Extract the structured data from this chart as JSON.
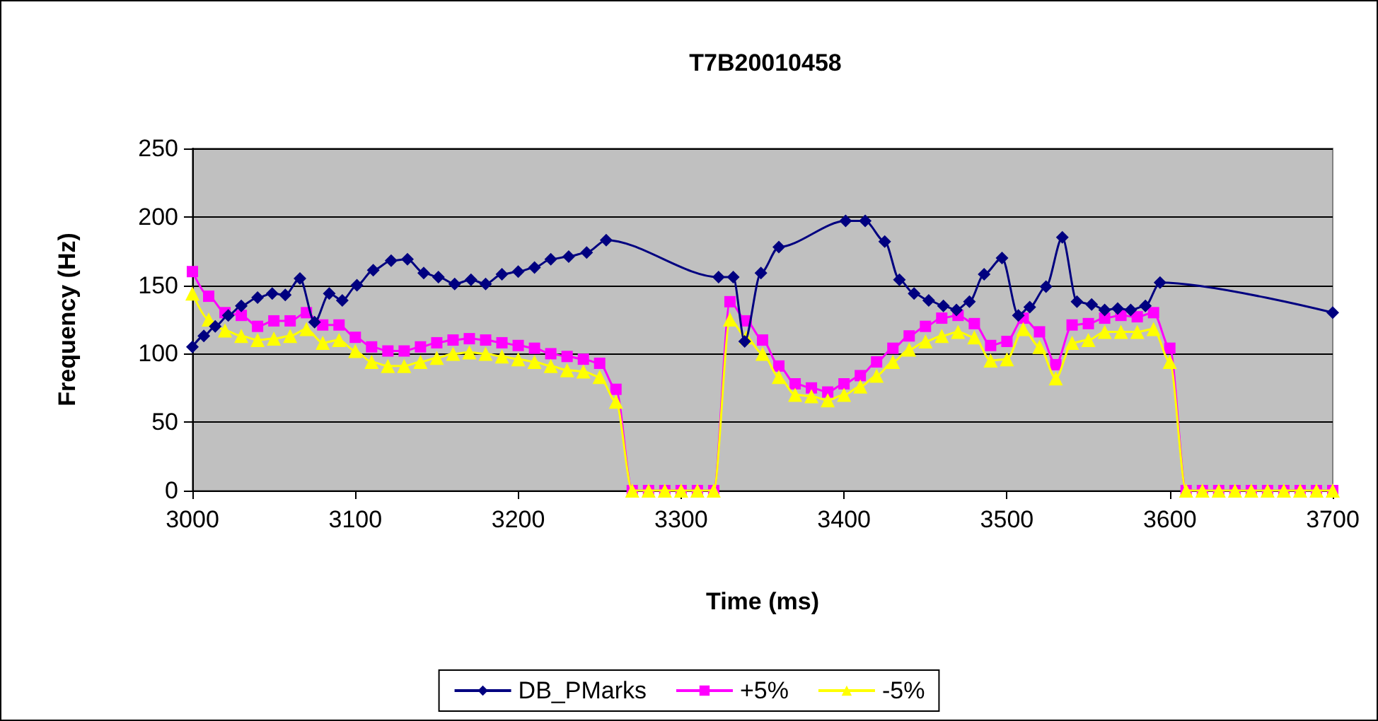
{
  "chart_data": {
    "type": "line",
    "title": "T7B20010458",
    "xlabel": "Time (ms)",
    "ylabel": "Frequency (Hz)",
    "xlim": [
      3000,
      3700
    ],
    "xticks": [
      3000,
      3100,
      3200,
      3300,
      3400,
      3500,
      3600,
      3700
    ],
    "ylim": [
      0,
      250
    ],
    "yticks": [
      0,
      50,
      100,
      150,
      200,
      250
    ],
    "grid": "y",
    "legend": "bottom",
    "x": [
      3000,
      3010,
      3020,
      3030,
      3040,
      3050,
      3060,
      3070,
      3080,
      3090,
      3100,
      3110,
      3120,
      3130,
      3140,
      3150,
      3160,
      3170,
      3180,
      3190,
      3200,
      3210,
      3220,
      3230,
      3240,
      3250,
      3260,
      3270,
      3280,
      3290,
      3300,
      3310,
      3320,
      3330,
      3340,
      3350,
      3360,
      3370,
      3380,
      3390,
      3400,
      3410,
      3420,
      3430,
      3440,
      3450,
      3460,
      3470,
      3480,
      3490,
      3500,
      3510,
      3520,
      3530,
      3540,
      3550,
      3560,
      3570,
      3580,
      3590,
      3600,
      3610,
      3620,
      3630,
      3640,
      3650,
      3660,
      3670,
      3680,
      3690,
      3700
    ],
    "series": [
      {
        "name": "DB_PMarks",
        "color": "#000080",
        "marker": "diamond",
        "x": [
          3000,
          3007,
          3014,
          3022,
          3030,
          3040,
          3049,
          3057,
          3066,
          3075,
          3084,
          3092,
          3101,
          3111,
          3122,
          3132,
          3142,
          3151,
          3161,
          3171,
          3180,
          3190,
          3200,
          3210,
          3220,
          3231,
          3242,
          3254,
          3323,
          3332,
          3339,
          3349,
          3360,
          3401,
          3413,
          3425,
          3434,
          3443,
          3452,
          3461,
          3469,
          3477,
          3486,
          3497,
          3507,
          3514,
          3524,
          3534,
          3543,
          3552,
          3560,
          3568,
          3576,
          3585,
          3594,
          3700
        ],
        "values": [
          105,
          113,
          120,
          128,
          135,
          141,
          144,
          143,
          155,
          123,
          144,
          139,
          150,
          161,
          168,
          169,
          159,
          156,
          151,
          154,
          151,
          158,
          160,
          163,
          169,
          171,
          174,
          183,
          156,
          156,
          109,
          159,
          178,
          197,
          197,
          182,
          154,
          144,
          139,
          135,
          132,
          138,
          158,
          170,
          128,
          134,
          149,
          185,
          138,
          136,
          132,
          133,
          132,
          135,
          152,
          130
        ]
      },
      {
        "name": "+5%",
        "color": "#ff00ff",
        "marker": "square",
        "values": [
          160,
          142,
          130,
          128,
          120,
          124,
          124,
          130,
          121,
          121,
          112,
          105,
          102,
          102,
          105,
          108,
          110,
          111,
          110,
          108,
          106,
          104,
          100,
          98,
          96,
          93,
          74,
          0,
          0,
          0,
          0,
          0,
          0,
          138,
          124,
          110,
          91,
          78,
          75,
          72,
          78,
          84,
          94,
          104,
          113,
          120,
          126,
          128,
          122,
          106,
          109,
          126,
          116,
          92,
          121,
          122,
          126,
          128,
          127,
          130,
          104,
          0,
          0,
          0,
          0,
          0,
          0,
          0,
          0,
          0,
          0
        ]
      },
      {
        "name": "-5%",
        "color": "#ffff00",
        "marker": "triangle",
        "values": [
          144,
          125,
          117,
          113,
          110,
          111,
          113,
          118,
          108,
          110,
          102,
          94,
          91,
          91,
          94,
          97,
          100,
          101,
          100,
          98,
          96,
          94,
          91,
          88,
          87,
          83,
          65,
          0,
          0,
          0,
          0,
          0,
          0,
          125,
          112,
          100,
          83,
          70,
          69,
          66,
          70,
          76,
          84,
          94,
          103,
          109,
          113,
          116,
          112,
          95,
          96,
          118,
          105,
          82,
          108,
          110,
          116,
          116,
          116,
          118,
          94,
          0,
          0,
          0,
          0,
          0,
          0,
          0,
          0,
          0,
          0
        ]
      }
    ]
  }
}
